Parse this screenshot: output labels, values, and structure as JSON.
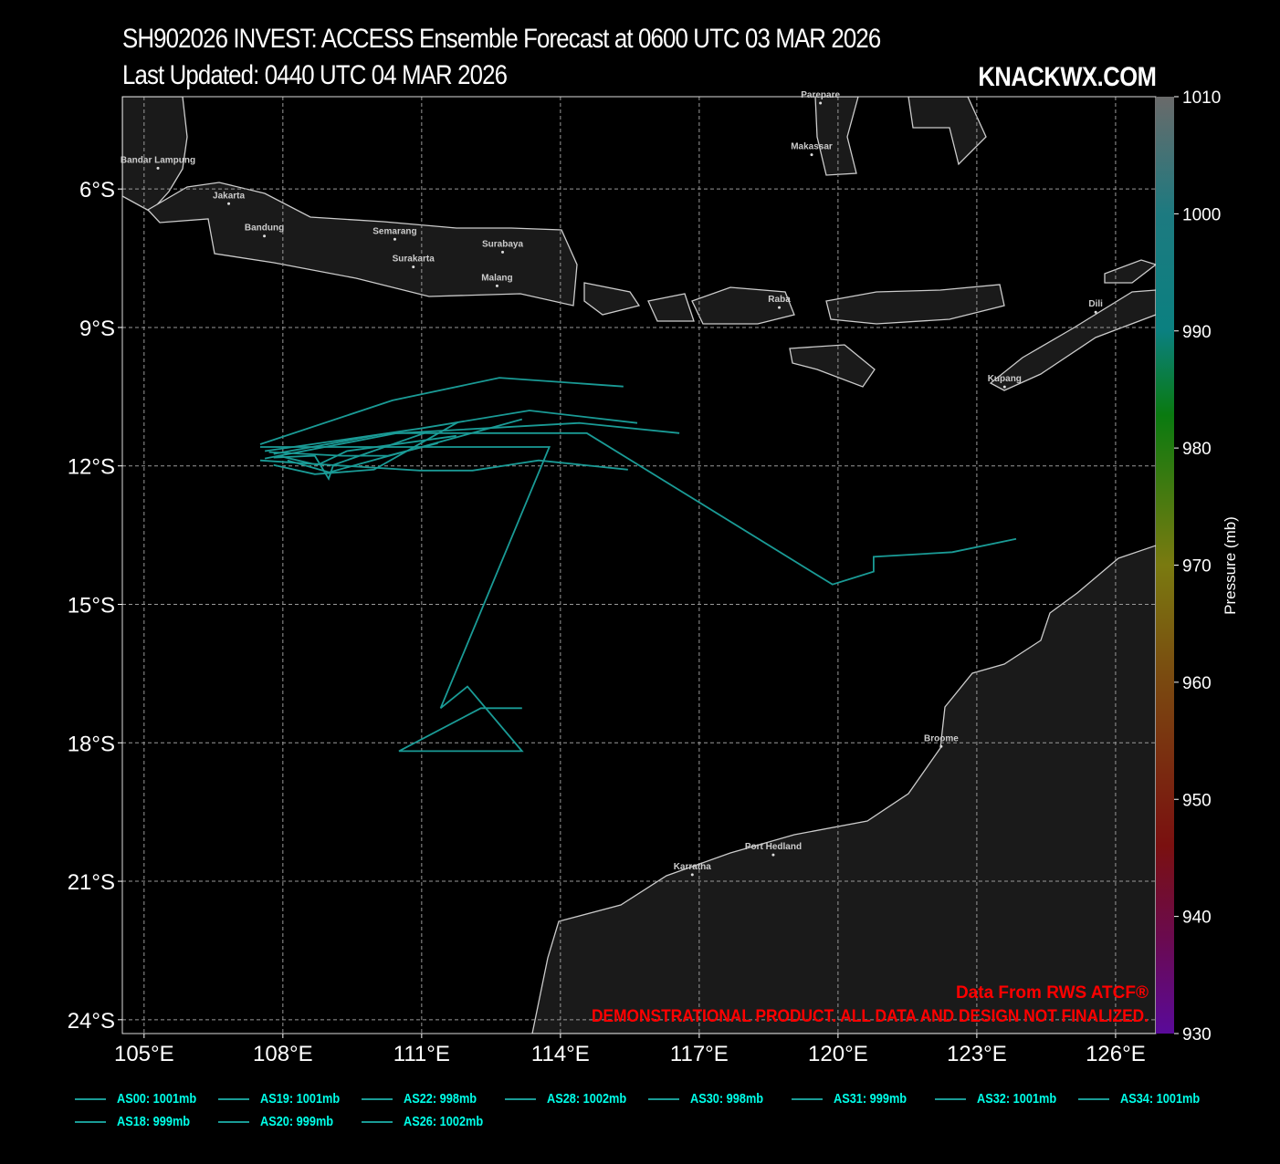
{
  "header": {
    "title": "SH902026 INVEST: ACCESS Ensemble Forecast at 0600 UTC 03 MAR 2026",
    "subtitle": "Last Updated: 0440 UTC 04 MAR 2026",
    "brand": "KNACKWX.COM"
  },
  "notes": {
    "source": "Data From RWS ATCF®",
    "disclaimer": "DEMONSTRATIONAL PRODUCT. ALL DATA AND DESIGN NOT FINALIZED."
  },
  "colors": {
    "track": "#1a9b96",
    "legend_text": "#00ffe8",
    "land": "#1a1a1a",
    "coast": "#cccccc",
    "note": "#ff0000"
  },
  "chart_data": {
    "type": "map-tracks",
    "lon_range": [
      104.53,
      126.87
    ],
    "lat_range": [
      -24.3,
      -4.0
    ],
    "x_ticks": [
      "105°E",
      "108°E",
      "111°E",
      "114°E",
      "117°E",
      "120°E",
      "123°E",
      "126°E"
    ],
    "x_tick_values": [
      105,
      108,
      111,
      114,
      117,
      120,
      123,
      126
    ],
    "y_ticks": [
      "6°S",
      "9°S",
      "12°S",
      "15°S",
      "18°S",
      "21°S",
      "24°S"
    ],
    "y_tick_values": [
      -6,
      -9,
      -12,
      -15,
      -18,
      -21,
      -24
    ],
    "colorbar": {
      "label": "Pressure (mb)",
      "ticks": [
        "1010",
        "1000",
        "990",
        "980",
        "970",
        "960",
        "950",
        "940",
        "930"
      ],
      "range": [
        930,
        1010
      ]
    },
    "cities": [
      {
        "name": "Bandar Lampung",
        "lon": 105.3,
        "lat": -5.43
      },
      {
        "name": "Jakarta",
        "lon": 106.83,
        "lat": -6.2
      },
      {
        "name": "Bandung",
        "lon": 107.6,
        "lat": -6.9
      },
      {
        "name": "Semarang",
        "lon": 110.42,
        "lat": -6.97
      },
      {
        "name": "Surakarta",
        "lon": 110.82,
        "lat": -7.57
      },
      {
        "name": "Surabaya",
        "lon": 112.75,
        "lat": -7.25
      },
      {
        "name": "Malang",
        "lon": 112.63,
        "lat": -7.98
      },
      {
        "name": "Raba",
        "lon": 118.73,
        "lat": -8.45
      },
      {
        "name": "Dili",
        "lon": 125.57,
        "lat": -8.55
      },
      {
        "name": "Kupang",
        "lon": 123.6,
        "lat": -10.17
      },
      {
        "name": "Broome",
        "lon": 122.23,
        "lat": -17.96
      },
      {
        "name": "Port Hedland",
        "lon": 118.6,
        "lat": -20.31
      },
      {
        "name": "Karratha",
        "lon": 116.85,
        "lat": -20.74
      },
      {
        "name": "Makassar",
        "lon": 119.43,
        "lat": -5.14
      },
      {
        "name": "Parepare",
        "lon": 119.62,
        "lat": -4.02
      }
    ],
    "series": [
      {
        "name": "AS00: 1001mb",
        "lon": [
          107.51,
          110.37,
          112.68,
          115.36
        ],
        "lat": [
          -11.53,
          -10.58,
          -10.09,
          -10.28
        ]
      },
      {
        "name": "AS19: 1001mb",
        "lon": [
          107.61,
          110.96,
          113.33,
          115.66
        ],
        "lat": [
          -11.68,
          -11.19,
          -10.8,
          -11.07
        ]
      },
      {
        "name": "AS22: 998mb",
        "lon": [
          107.61,
          110.47,
          114.57,
          119.88,
          120.77,
          120.77,
          122.47,
          123.85
        ],
        "lat": [
          -11.84,
          -11.29,
          -11.29,
          -14.57,
          -14.29,
          -13.97,
          -13.87,
          -13.58
        ]
      },
      {
        "name": "AS28: 1002mb",
        "lon": [
          107.8,
          110.17,
          114.41,
          116.57
        ],
        "lat": [
          -11.74,
          -11.31,
          -11.07,
          -11.29
        ]
      },
      {
        "name": "AS30: 998mb",
        "lon": [
          107.51,
          109.18,
          113.76,
          111.41,
          111.99,
          113.17,
          110.51,
          112.28,
          113.17
        ],
        "lat": [
          -11.59,
          -11.59,
          -11.59,
          -17.25,
          -16.78,
          -18.18,
          -18.18,
          -17.25,
          -17.25
        ]
      },
      {
        "name": "AS31: 999mb",
        "lon": [
          107.51,
          108.39,
          110.96,
          112.1,
          113.53,
          115.46
        ],
        "lat": [
          -11.88,
          -11.94,
          -12.1,
          -12.1,
          -11.88,
          -12.08
        ]
      },
      {
        "name": "AS32: 1001mb",
        "lon": [
          107.8,
          108.69,
          109.97,
          111.79
        ],
        "lat": [
          -11.98,
          -12.18,
          -12.08,
          -11.05
        ]
      },
      {
        "name": "AS34: 1001mb",
        "lon": [
          108.1,
          109.0,
          113.17
        ],
        "lat": [
          -11.88,
          -12.14,
          -10.99
        ]
      },
      {
        "name": "AS18: 999mb",
        "lon": [
          107.9,
          108.75,
          109.38,
          111.75
        ],
        "lat": [
          -11.78,
          -11.98,
          -11.68,
          -11.35
        ]
      },
      {
        "name": "AS20: 999mb",
        "lon": [
          107.8,
          108.69,
          108.99,
          109.09,
          111.06
        ],
        "lat": [
          -11.82,
          -11.78,
          -12.28,
          -11.98,
          -11.29
        ]
      },
      {
        "name": "AS26: 1002mb",
        "lon": [
          107.7,
          109.28,
          110.27,
          111.35
        ],
        "lat": [
          -11.7,
          -11.78,
          -11.78,
          -11.51
        ]
      }
    ]
  }
}
